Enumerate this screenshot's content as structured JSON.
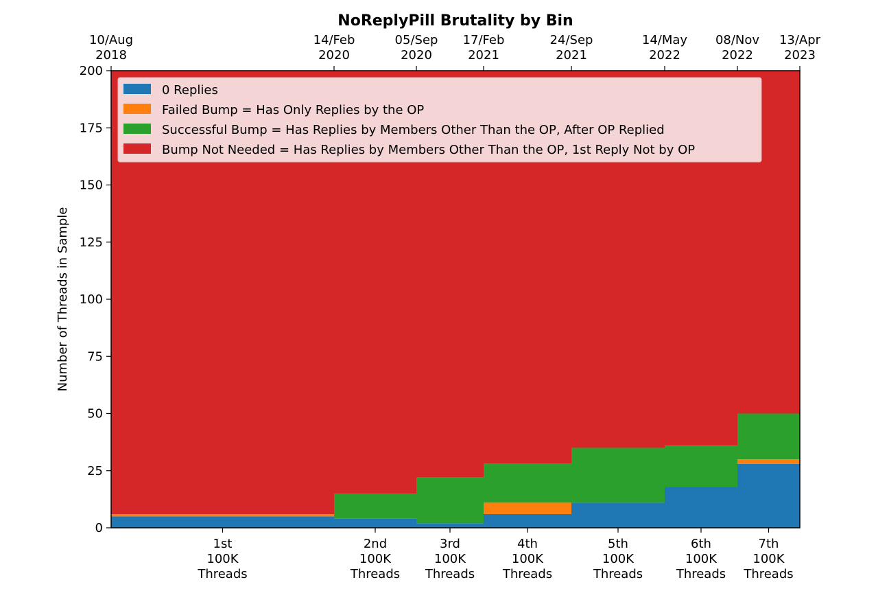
{
  "chart_data": {
    "type": "area",
    "title": "NoReplyPill Brutality by Bin",
    "xlabel": "",
    "ylabel": "Number of Threads in Sample",
    "ylim": [
      0,
      200
    ],
    "y_ticks": [
      "0",
      "25",
      "50",
      "75",
      "100",
      "125",
      "150",
      "175",
      "200"
    ],
    "top_axis_dates": [
      [
        "10/Aug",
        "2018"
      ],
      [
        "14/Feb",
        "2020"
      ],
      [
        "05/Sep",
        "2020"
      ],
      [
        "17/Feb",
        "2021"
      ],
      [
        "24/Sep",
        "2021"
      ],
      [
        "14/May",
        "2022"
      ],
      [
        "08/Nov",
        "2022"
      ],
      [
        "13/Apr",
        "2023"
      ]
    ],
    "bins": [
      [
        "1st",
        "100K",
        "Threads"
      ],
      [
        "2nd",
        "100K",
        "Threads"
      ],
      [
        "3rd",
        "100K",
        "Threads"
      ],
      [
        "4th",
        "100K",
        "Threads"
      ],
      [
        "5th",
        "100K",
        "Threads"
      ],
      [
        "6th",
        "100K",
        "Threads"
      ],
      [
        "7th",
        "100K",
        "Threads"
      ]
    ],
    "series": [
      {
        "name": "0 Replies",
        "color": "#1f77b4",
        "values": [
          5,
          4,
          2,
          6,
          11,
          18,
          28
        ]
      },
      {
        "name": "Failed Bump = Has Only Replies by the OP",
        "color": "#ff7f0e",
        "values": [
          1,
          0,
          0,
          5,
          0,
          0,
          2
        ]
      },
      {
        "name": "Successful Bump = Has Replies by Members Other Than the OP, After OP Replied",
        "color": "#2ca02c",
        "values": [
          0,
          11,
          20,
          17,
          24,
          18,
          20
        ]
      },
      {
        "name": "Bump Not Needed = Has Replies by Members Other Than the OP, 1st Reply Not by OP",
        "color": "#d62728",
        "values": [
          194,
          185,
          178,
          172,
          165,
          164,
          150
        ]
      }
    ],
    "legend_position": "upper-left",
    "grid": false
  }
}
